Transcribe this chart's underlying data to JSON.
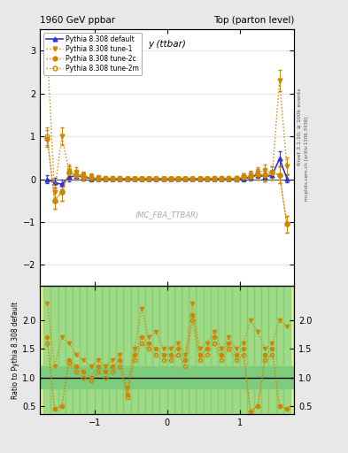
{
  "title_left": "1960 GeV ppbar",
  "title_right": "Top (parton level)",
  "plot_title": "y (ttbar)",
  "watermark": "(MC_FBA_TTBAR)",
  "right_label_top": "Rivet 3.1.10, ≥ 100k events",
  "right_label_bot": "mcplots.cern.ch [arXiv:1306.3436]",
  "ylabel_ratio": "Ratio to Pythia 8.308 default",
  "xlim": [
    -1.75,
    1.75
  ],
  "ylim_main": [
    -2.5,
    3.5
  ],
  "ylim_ratio": [
    0.35,
    2.6
  ],
  "main_yticks": [
    -2,
    -1,
    0,
    1,
    2,
    3
  ],
  "ratio_yticks": [
    0.5,
    1.0,
    1.5,
    2.0
  ],
  "xticks": [
    -1,
    0,
    1
  ],
  "series": [
    {
      "label": "Pythia 8.308 default",
      "color": "#3333cc",
      "linestyle": "-",
      "marker": "^",
      "markerfilled": true,
      "linewidth": 1.2,
      "markersize": 3.5,
      "x": [
        -1.65,
        -1.55,
        -1.45,
        -1.35,
        -1.25,
        -1.15,
        -1.05,
        -0.95,
        -0.85,
        -0.75,
        -0.65,
        -0.55,
        -0.45,
        -0.35,
        -0.25,
        -0.15,
        -0.05,
        0.05,
        0.15,
        0.25,
        0.35,
        0.45,
        0.55,
        0.65,
        0.75,
        0.85,
        0.95,
        1.05,
        1.15,
        1.25,
        1.35,
        1.45,
        1.55,
        1.65
      ],
      "y": [
        0.0,
        -0.08,
        -0.12,
        0.05,
        0.08,
        0.05,
        0.02,
        0.01,
        0.01,
        0.01,
        0.01,
        0.01,
        0.01,
        0.01,
        0.01,
        0.01,
        0.01,
        0.01,
        0.01,
        0.01,
        0.01,
        0.01,
        0.01,
        0.01,
        0.01,
        0.01,
        0.01,
        0.01,
        0.05,
        0.1,
        0.05,
        0.1,
        0.48,
        0.02
      ],
      "yerr": [
        0.1,
        0.12,
        0.12,
        0.1,
        0.1,
        0.08,
        0.06,
        0.05,
        0.04,
        0.04,
        0.04,
        0.03,
        0.03,
        0.03,
        0.03,
        0.03,
        0.03,
        0.03,
        0.03,
        0.03,
        0.03,
        0.03,
        0.03,
        0.04,
        0.04,
        0.04,
        0.05,
        0.06,
        0.08,
        0.1,
        0.1,
        0.12,
        0.18,
        0.1
      ]
    },
    {
      "label": "Pythia 8.308 tune-1",
      "color": "#cc8800",
      "linestyle": "dotted",
      "marker": "v",
      "markerfilled": true,
      "linewidth": 1.0,
      "markersize": 3.5,
      "x": [
        -1.65,
        -1.55,
        -1.45,
        -1.35,
        -1.25,
        -1.15,
        -1.05,
        -0.95,
        -0.85,
        -0.75,
        -0.65,
        -0.55,
        -0.45,
        -0.35,
        -0.25,
        -0.15,
        -0.05,
        0.05,
        0.15,
        0.25,
        0.35,
        0.45,
        0.55,
        0.65,
        0.75,
        0.85,
        0.95,
        1.05,
        1.15,
        1.25,
        1.35,
        1.45,
        1.55,
        1.65
      ],
      "y": [
        3.0,
        -0.3,
        1.0,
        0.2,
        0.15,
        0.08,
        0.05,
        0.03,
        0.02,
        0.02,
        0.02,
        0.02,
        0.02,
        0.02,
        0.02,
        0.02,
        0.02,
        0.02,
        0.02,
        0.02,
        0.02,
        0.02,
        0.02,
        0.02,
        0.02,
        0.02,
        0.02,
        0.05,
        0.1,
        0.15,
        0.2,
        0.15,
        2.3,
        0.3
      ],
      "yerr": [
        0.2,
        0.2,
        0.2,
        0.15,
        0.12,
        0.1,
        0.08,
        0.06,
        0.05,
        0.05,
        0.05,
        0.04,
        0.04,
        0.04,
        0.04,
        0.04,
        0.04,
        0.04,
        0.04,
        0.04,
        0.04,
        0.04,
        0.04,
        0.05,
        0.05,
        0.05,
        0.06,
        0.08,
        0.1,
        0.12,
        0.15,
        0.15,
        0.25,
        0.2
      ]
    },
    {
      "label": "Pythia 8.308 tune-2c",
      "color": "#cc8800",
      "linestyle": "dotted",
      "marker": "o",
      "markerfilled": true,
      "linewidth": 1.0,
      "markersize": 3.5,
      "x": [
        -1.65,
        -1.55,
        -1.45,
        -1.35,
        -1.25,
        -1.15,
        -1.05,
        -0.95,
        -0.85,
        -0.75,
        -0.65,
        -0.55,
        -0.45,
        -0.35,
        -0.25,
        -0.15,
        -0.05,
        0.05,
        0.15,
        0.25,
        0.35,
        0.45,
        0.55,
        0.65,
        0.75,
        0.85,
        0.95,
        1.05,
        1.15,
        1.25,
        1.35,
        1.45,
        1.55,
        1.65
      ],
      "y": [
        0.95,
        -0.5,
        -0.3,
        0.15,
        0.1,
        0.06,
        0.03,
        0.02,
        0.01,
        0.01,
        0.01,
        0.01,
        0.01,
        0.01,
        0.01,
        0.01,
        0.01,
        0.01,
        0.01,
        0.01,
        0.01,
        0.01,
        0.01,
        0.01,
        0.01,
        0.01,
        0.01,
        0.05,
        0.08,
        0.12,
        0.1,
        0.15,
        0.1,
        -1.05
      ],
      "yerr": [
        0.2,
        0.2,
        0.2,
        0.15,
        0.12,
        0.1,
        0.08,
        0.06,
        0.05,
        0.05,
        0.05,
        0.04,
        0.04,
        0.04,
        0.04,
        0.04,
        0.04,
        0.04,
        0.04,
        0.04,
        0.04,
        0.04,
        0.04,
        0.05,
        0.05,
        0.05,
        0.06,
        0.08,
        0.1,
        0.12,
        0.15,
        0.15,
        0.2,
        0.2
      ]
    },
    {
      "label": "Pythia 8.308 tune-2m",
      "color": "#cc8800",
      "linestyle": "dotted",
      "marker": "o",
      "markerfilled": false,
      "linewidth": 1.0,
      "markersize": 3.5,
      "x": [
        -1.65,
        -1.55,
        -1.45,
        -1.35,
        -1.25,
        -1.15,
        -1.05,
        -0.95,
        -0.85,
        -0.75,
        -0.65,
        -0.55,
        -0.45,
        -0.35,
        -0.25,
        -0.15,
        -0.05,
        0.05,
        0.15,
        0.25,
        0.35,
        0.45,
        0.55,
        0.65,
        0.75,
        0.85,
        0.95,
        1.05,
        1.15,
        1.25,
        1.35,
        1.45,
        1.55,
        1.65
      ],
      "y": [
        1.0,
        -0.5,
        -0.3,
        0.15,
        0.1,
        0.06,
        0.03,
        0.02,
        0.01,
        0.01,
        0.01,
        0.01,
        0.01,
        0.01,
        0.01,
        0.01,
        0.01,
        0.01,
        0.01,
        0.01,
        0.01,
        0.01,
        0.01,
        0.01,
        0.01,
        0.01,
        0.01,
        0.05,
        0.08,
        0.12,
        0.1,
        0.15,
        0.1,
        -1.05
      ],
      "yerr": [
        0.2,
        0.2,
        0.2,
        0.15,
        0.12,
        0.1,
        0.08,
        0.06,
        0.05,
        0.05,
        0.05,
        0.04,
        0.04,
        0.04,
        0.04,
        0.04,
        0.04,
        0.04,
        0.04,
        0.04,
        0.04,
        0.04,
        0.04,
        0.05,
        0.05,
        0.05,
        0.06,
        0.08,
        0.1,
        0.12,
        0.15,
        0.15,
        0.2,
        0.2
      ]
    }
  ],
  "ratio_series": [
    {
      "label": "Pythia 8.308 tune-1",
      "color": "#cc8800",
      "linestyle": "dotted",
      "marker": "v",
      "markerfilled": true,
      "markersize": 3.0,
      "x": [
        -1.65,
        -1.55,
        -1.45,
        -1.35,
        -1.25,
        -1.15,
        -1.05,
        -0.95,
        -0.85,
        -0.75,
        -0.65,
        -0.55,
        -0.45,
        -0.35,
        -0.25,
        -0.15,
        -0.05,
        0.05,
        0.15,
        0.25,
        0.35,
        0.45,
        0.55,
        0.65,
        0.75,
        0.85,
        0.95,
        1.05,
        1.15,
        1.25,
        1.35,
        1.45,
        1.55,
        1.65
      ],
      "y": [
        2.3,
        1.2,
        1.7,
        1.6,
        1.4,
        1.3,
        1.2,
        1.3,
        1.2,
        1.3,
        1.4,
        0.8,
        1.5,
        2.2,
        1.7,
        1.8,
        1.5,
        1.5,
        1.6,
        1.4,
        2.3,
        1.5,
        1.6,
        1.8,
        1.5,
        1.7,
        1.5,
        1.6,
        2.0,
        1.8,
        1.5,
        1.6,
        2.0,
        1.9
      ]
    },
    {
      "label": "Pythia 8.308 tune-2c",
      "color": "#cc8800",
      "linestyle": "dotted",
      "marker": "o",
      "markerfilled": true,
      "markersize": 3.0,
      "x": [
        -1.65,
        -1.55,
        -1.45,
        -1.35,
        -1.25,
        -1.15,
        -1.05,
        -0.95,
        -0.85,
        -0.75,
        -0.65,
        -0.55,
        -0.45,
        -0.35,
        -0.25,
        -0.15,
        -0.05,
        0.05,
        0.15,
        0.25,
        0.35,
        0.45,
        0.55,
        0.65,
        0.75,
        0.85,
        0.95,
        1.05,
        1.15,
        1.25,
        1.35,
        1.45,
        1.55,
        1.65
      ],
      "y": [
        1.7,
        0.45,
        0.5,
        1.3,
        1.2,
        1.1,
        1.0,
        1.2,
        1.1,
        1.2,
        1.3,
        0.7,
        1.4,
        1.7,
        1.6,
        1.5,
        1.4,
        1.4,
        1.5,
        1.3,
        2.1,
        1.4,
        1.5,
        1.7,
        1.4,
        1.6,
        1.4,
        1.5,
        0.4,
        0.5,
        1.4,
        1.5,
        0.5,
        0.45
      ]
    },
    {
      "label": "Pythia 8.308 tune-2m",
      "color": "#cc8800",
      "linestyle": "dotted",
      "marker": "o",
      "markerfilled": false,
      "markersize": 3.0,
      "x": [
        -1.65,
        -1.55,
        -1.45,
        -1.35,
        -1.25,
        -1.15,
        -1.05,
        -0.95,
        -0.85,
        -0.75,
        -0.65,
        -0.55,
        -0.45,
        -0.35,
        -0.25,
        -0.15,
        -0.05,
        0.05,
        0.15,
        0.25,
        0.35,
        0.45,
        0.55,
        0.65,
        0.75,
        0.85,
        0.95,
        1.05,
        1.15,
        1.25,
        1.35,
        1.45,
        1.55,
        1.65
      ],
      "y": [
        1.6,
        0.45,
        0.5,
        1.25,
        1.1,
        1.0,
        0.95,
        1.1,
        1.0,
        1.1,
        1.2,
        0.65,
        1.3,
        1.6,
        1.5,
        1.4,
        1.3,
        1.3,
        1.4,
        1.2,
        2.0,
        1.3,
        1.4,
        1.6,
        1.3,
        1.5,
        1.3,
        1.4,
        0.4,
        0.5,
        1.3,
        1.4,
        0.5,
        0.45
      ]
    }
  ],
  "ratio_bg_green": "#7dcd7d",
  "ratio_bg_yellow": "#ffff99",
  "main_bg": "#ffffff",
  "fig_bg": "#e8e8e8"
}
